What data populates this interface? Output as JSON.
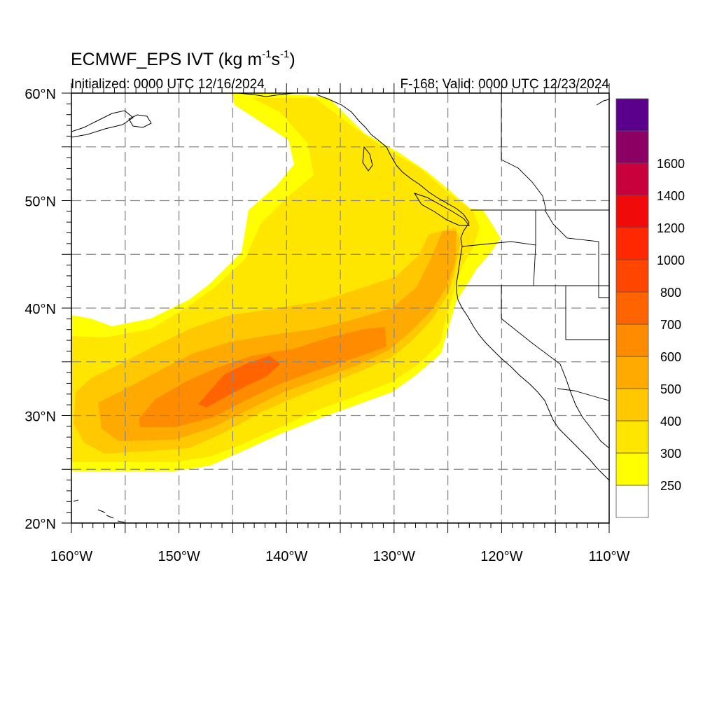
{
  "title": {
    "main": "ECMWF_EPS IVT (kg m",
    "sup1": "-1",
    "mid": "s",
    "sup2": "-1",
    "end": ")"
  },
  "subtitle_left": "Initialized: 0000 UTC 12/16/2024",
  "subtitle_right": "F-168: Valid: 0000 UTC 12/23/2024",
  "map": {
    "lon_range": [
      -160,
      -110
    ],
    "lat_range": [
      20,
      60
    ],
    "lon_ticks": [
      {
        "value": -160,
        "label": "160°W"
      },
      {
        "value": -150,
        "label": "150°W"
      },
      {
        "value": -140,
        "label": "140°W"
      },
      {
        "value": -130,
        "label": "130°W"
      },
      {
        "value": -120,
        "label": "120°W"
      },
      {
        "value": -110,
        "label": "110°W"
      }
    ],
    "lat_ticks": [
      {
        "value": 20,
        "label": "20°N"
      },
      {
        "value": 30,
        "label": "30°N"
      },
      {
        "value": 40,
        "label": "40°N"
      },
      {
        "value": 50,
        "label": "50°N"
      },
      {
        "value": 60,
        "label": "60°N"
      }
    ],
    "grid_lons": [
      -155,
      -150,
      -145,
      -140,
      -135,
      -130,
      -125,
      -120,
      -115
    ],
    "grid_lats": [
      25,
      30,
      35,
      40,
      45,
      50,
      55
    ]
  },
  "colorbar": {
    "levels": [
      {
        "label": "250",
        "color": "#ffff00"
      },
      {
        "label": "300",
        "color": "#ffe600"
      },
      {
        "label": "400",
        "color": "#ffc800"
      },
      {
        "label": "500",
        "color": "#ffaa00"
      },
      {
        "label": "600",
        "color": "#ff8c00"
      },
      {
        "label": "700",
        "color": "#ff6400"
      },
      {
        "label": "800",
        "color": "#ff4600"
      },
      {
        "label": "1000",
        "color": "#ff2800"
      },
      {
        "label": "1200",
        "color": "#f00a0a"
      },
      {
        "label": "1400",
        "color": "#c8003c"
      },
      {
        "label": "1600",
        "color": "#8c0064"
      }
    ],
    "below_color": "#ffffff",
    "top_color": "#5a008c"
  },
  "colors": {
    "land_line": "#000000",
    "grid": "#888888"
  }
}
